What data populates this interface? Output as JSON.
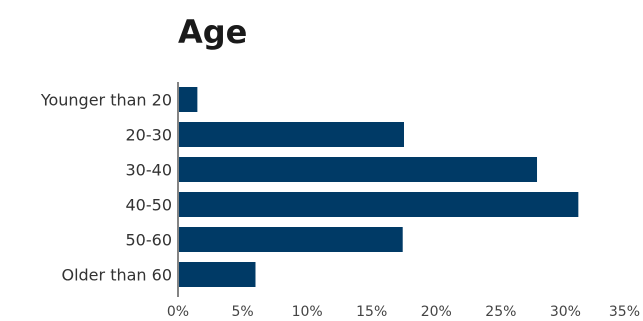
{
  "chart_data": {
    "type": "bar",
    "orientation": "horizontal",
    "title": "Age",
    "categories": [
      "Younger than 20",
      "20-30",
      "30-40",
      "40-50",
      "50-60",
      "Older than 60"
    ],
    "values": [
      1.5,
      17.5,
      27.8,
      31.0,
      17.4,
      6.0
    ],
    "xlim": [
      0,
      35
    ],
    "ticks": [
      0,
      5,
      10,
      15,
      20,
      25,
      30,
      35
    ],
    "tick_labels": [
      "0%",
      "5%",
      "10%",
      "15%",
      "20%",
      "25%",
      "30%",
      "35%"
    ],
    "xlabel": "",
    "ylabel": "",
    "grid": false,
    "legend": "none",
    "bar_color": "#003a66"
  }
}
